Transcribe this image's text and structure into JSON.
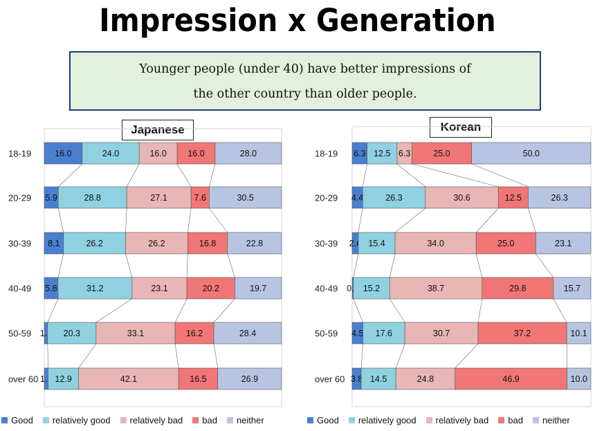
{
  "title": "Impression x Generation",
  "summary": {
    "line1": "Younger people (under 40) have better impressions of",
    "line2": "the other country than older people."
  },
  "colors": {
    "Good": "#4a7fd0",
    "relatively good": "#8fd1e0",
    "relatively bad": "#e8b6b4",
    "bad": "#f17676",
    "neither": "#b7c5e2"
  },
  "legend": [
    "Good",
    "relatively good",
    "relatively bad",
    "bad",
    "neither"
  ],
  "chart_data": [
    {
      "type": "bar",
      "stacked": "100%",
      "orientation": "horizontal",
      "title": "Japanese",
      "categories": [
        "18-19",
        "20-29",
        "30-39",
        "40-49",
        "50-59",
        "over 60"
      ],
      "series": [
        {
          "name": "Good",
          "values": [
            16.0,
            5.9,
            8.1,
            5.8,
            1.4,
            1.6
          ]
        },
        {
          "name": "relatively good",
          "values": [
            24.0,
            28.8,
            26.2,
            31.2,
            20.3,
            12.9
          ]
        },
        {
          "name": "relatively bad",
          "values": [
            16.0,
            27.1,
            26.2,
            23.1,
            33.1,
            42.1
          ]
        },
        {
          "name": "bad",
          "values": [
            16.0,
            7.6,
            16.8,
            20.2,
            16.2,
            16.5
          ]
        },
        {
          "name": "neither",
          "values": [
            28.0,
            30.5,
            22.8,
            19.7,
            28.4,
            26.9
          ]
        }
      ]
    },
    {
      "type": "bar",
      "stacked": "100%",
      "orientation": "horizontal",
      "title": "Korean",
      "categories": [
        "18-19",
        "20-29",
        "30-39",
        "40-49",
        "50-59",
        "over 60"
      ],
      "series": [
        {
          "name": "Good",
          "values": [
            6.3,
            4.4,
            2.6,
            0.5,
            4.5,
            3.8
          ]
        },
        {
          "name": "relatively good",
          "values": [
            12.5,
            26.3,
            15.4,
            15.2,
            17.6,
            14.5
          ]
        },
        {
          "name": "relatively bad",
          "values": [
            6.3,
            30.6,
            34.0,
            38.7,
            30.7,
            24.8
          ]
        },
        {
          "name": "bad",
          "values": [
            25.0,
            12.5,
            25.0,
            29.8,
            37.2,
            46.9
          ]
        },
        {
          "name": "neither",
          "values": [
            50.0,
            26.3,
            23.1,
            15.7,
            10.1,
            10.0
          ]
        }
      ]
    }
  ]
}
